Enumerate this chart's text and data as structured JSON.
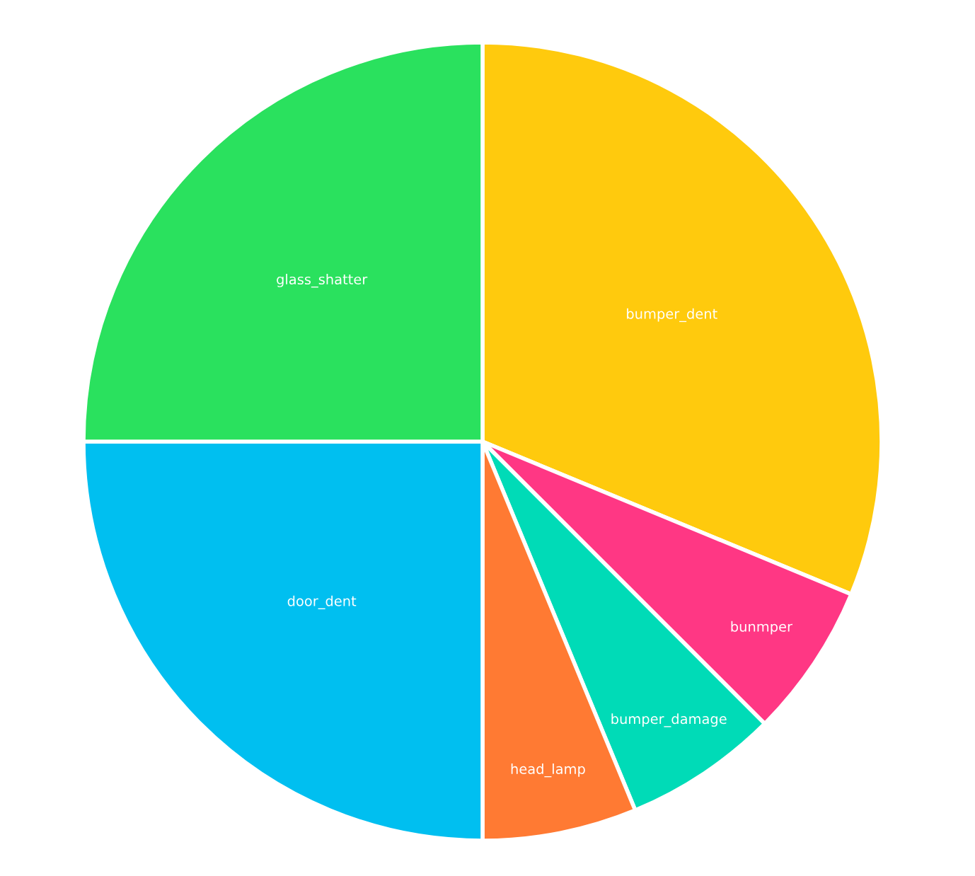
{
  "chart_data": {
    "type": "pie",
    "categories": [
      "bumper_dent",
      "bunmper",
      "bumper_damage",
      "head_lamp",
      "door_dent",
      "glass_shatter"
    ],
    "values": [
      31.25,
      6.25,
      6.25,
      6.25,
      25,
      25
    ],
    "colors": [
      "#ffca0d",
      "#ff3784",
      "#00dbb7",
      "#ff7a33",
      "#00bff0",
      "#2ae15e"
    ]
  }
}
